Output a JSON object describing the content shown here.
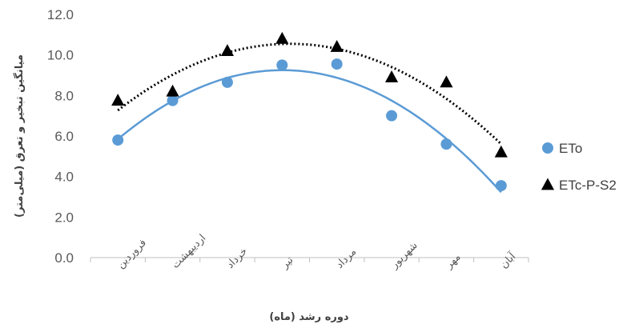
{
  "chart_data": {
    "type": "scatter",
    "categories": [
      "فروردین",
      "اردیبهشت",
      "خرداد",
      "تیر",
      "مرداد",
      "شهریور",
      "مهر",
      "آبان"
    ],
    "series": [
      {
        "name": "ETo",
        "marker": "circle",
        "color": "#5B9BD5",
        "values": [
          5.8,
          7.75,
          8.65,
          9.5,
          9.55,
          7.0,
          5.6,
          3.55
        ],
        "trendline": {
          "type": "polynomial",
          "order": 2,
          "style": "solid",
          "color": "#5B9BD5"
        }
      },
      {
        "name": "ETc-P-S2",
        "marker": "triangle",
        "color": "#000000",
        "values": [
          7.75,
          8.2,
          10.2,
          10.8,
          10.4,
          8.9,
          8.65,
          5.2
        ],
        "trendline": {
          "type": "polynomial",
          "order": 2,
          "style": "dotted",
          "color": "#000000"
        }
      }
    ],
    "ylim": [
      0,
      12
    ],
    "ytick_step": 2,
    "ytick_labels": [
      "0.0",
      "2.0",
      "4.0",
      "6.0",
      "8.0",
      "10.0",
      "12.0"
    ],
    "xlabel": "دوره رشد (ماه)",
    "ylabel": "میانگین تبخیر و تعرق (میلی‌متر)",
    "legend_position": "right",
    "grid": false
  }
}
